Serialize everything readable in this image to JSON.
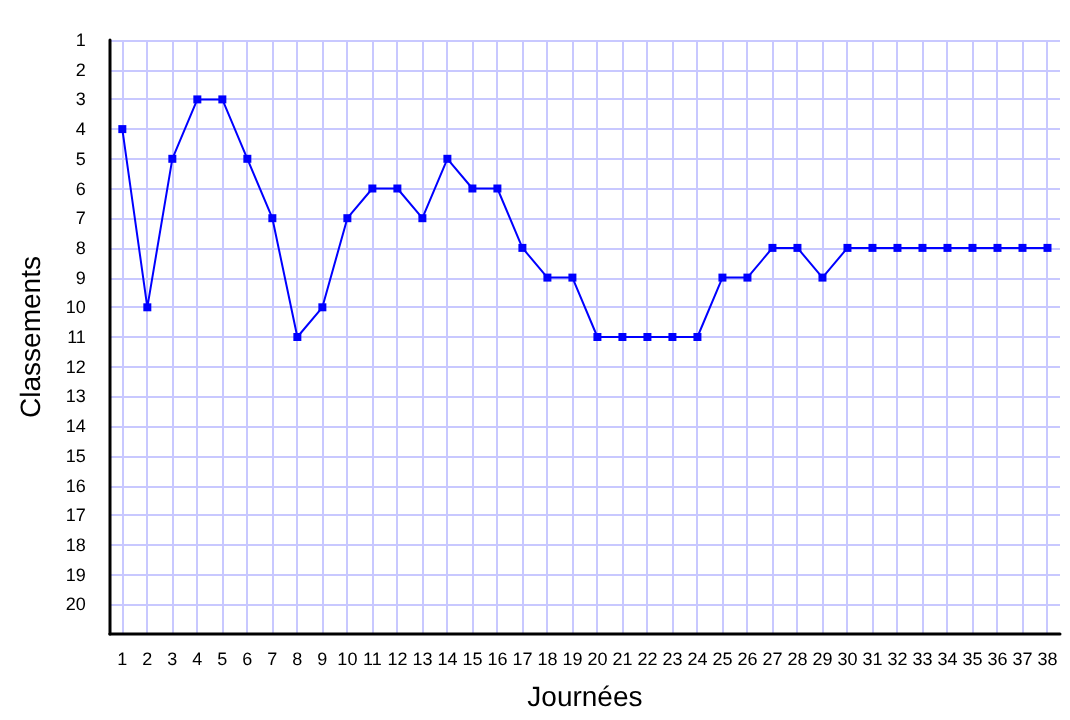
{
  "chart_data": {
    "type": "line",
    "xlabel": "Journées",
    "ylabel": "Classements",
    "x": [
      1,
      2,
      3,
      4,
      5,
      6,
      7,
      8,
      9,
      10,
      11,
      12,
      13,
      14,
      15,
      16,
      17,
      18,
      19,
      20,
      21,
      22,
      23,
      24,
      25,
      26,
      27,
      28,
      29,
      30,
      31,
      32,
      33,
      34,
      35,
      36,
      37,
      38
    ],
    "series": [
      {
        "color": "#0000ff",
        "values": [
          4,
          10,
          5,
          3,
          3,
          5,
          7,
          11,
          10,
          7,
          6,
          6,
          7,
          5,
          6,
          6,
          8,
          9,
          9,
          11,
          11,
          11,
          11,
          11,
          9,
          9,
          8,
          8,
          9,
          8,
          8,
          8,
          8,
          8,
          8,
          8,
          8,
          8
        ]
      }
    ],
    "xlim": [
      0.5,
      38.5
    ],
    "ylim": [
      21,
      1
    ],
    "xticks": [
      1,
      2,
      3,
      4,
      5,
      6,
      7,
      8,
      9,
      10,
      11,
      12,
      13,
      14,
      15,
      16,
      17,
      18,
      19,
      20,
      21,
      22,
      23,
      24,
      25,
      26,
      27,
      28,
      29,
      30,
      31,
      32,
      33,
      34,
      35,
      36,
      37,
      38
    ],
    "yticks": [
      1,
      2,
      3,
      4,
      5,
      6,
      7,
      8,
      9,
      10,
      11,
      12,
      13,
      14,
      15,
      16,
      17,
      18,
      19,
      20
    ],
    "grid": true,
    "marker": "square",
    "line_style": "solid"
  }
}
